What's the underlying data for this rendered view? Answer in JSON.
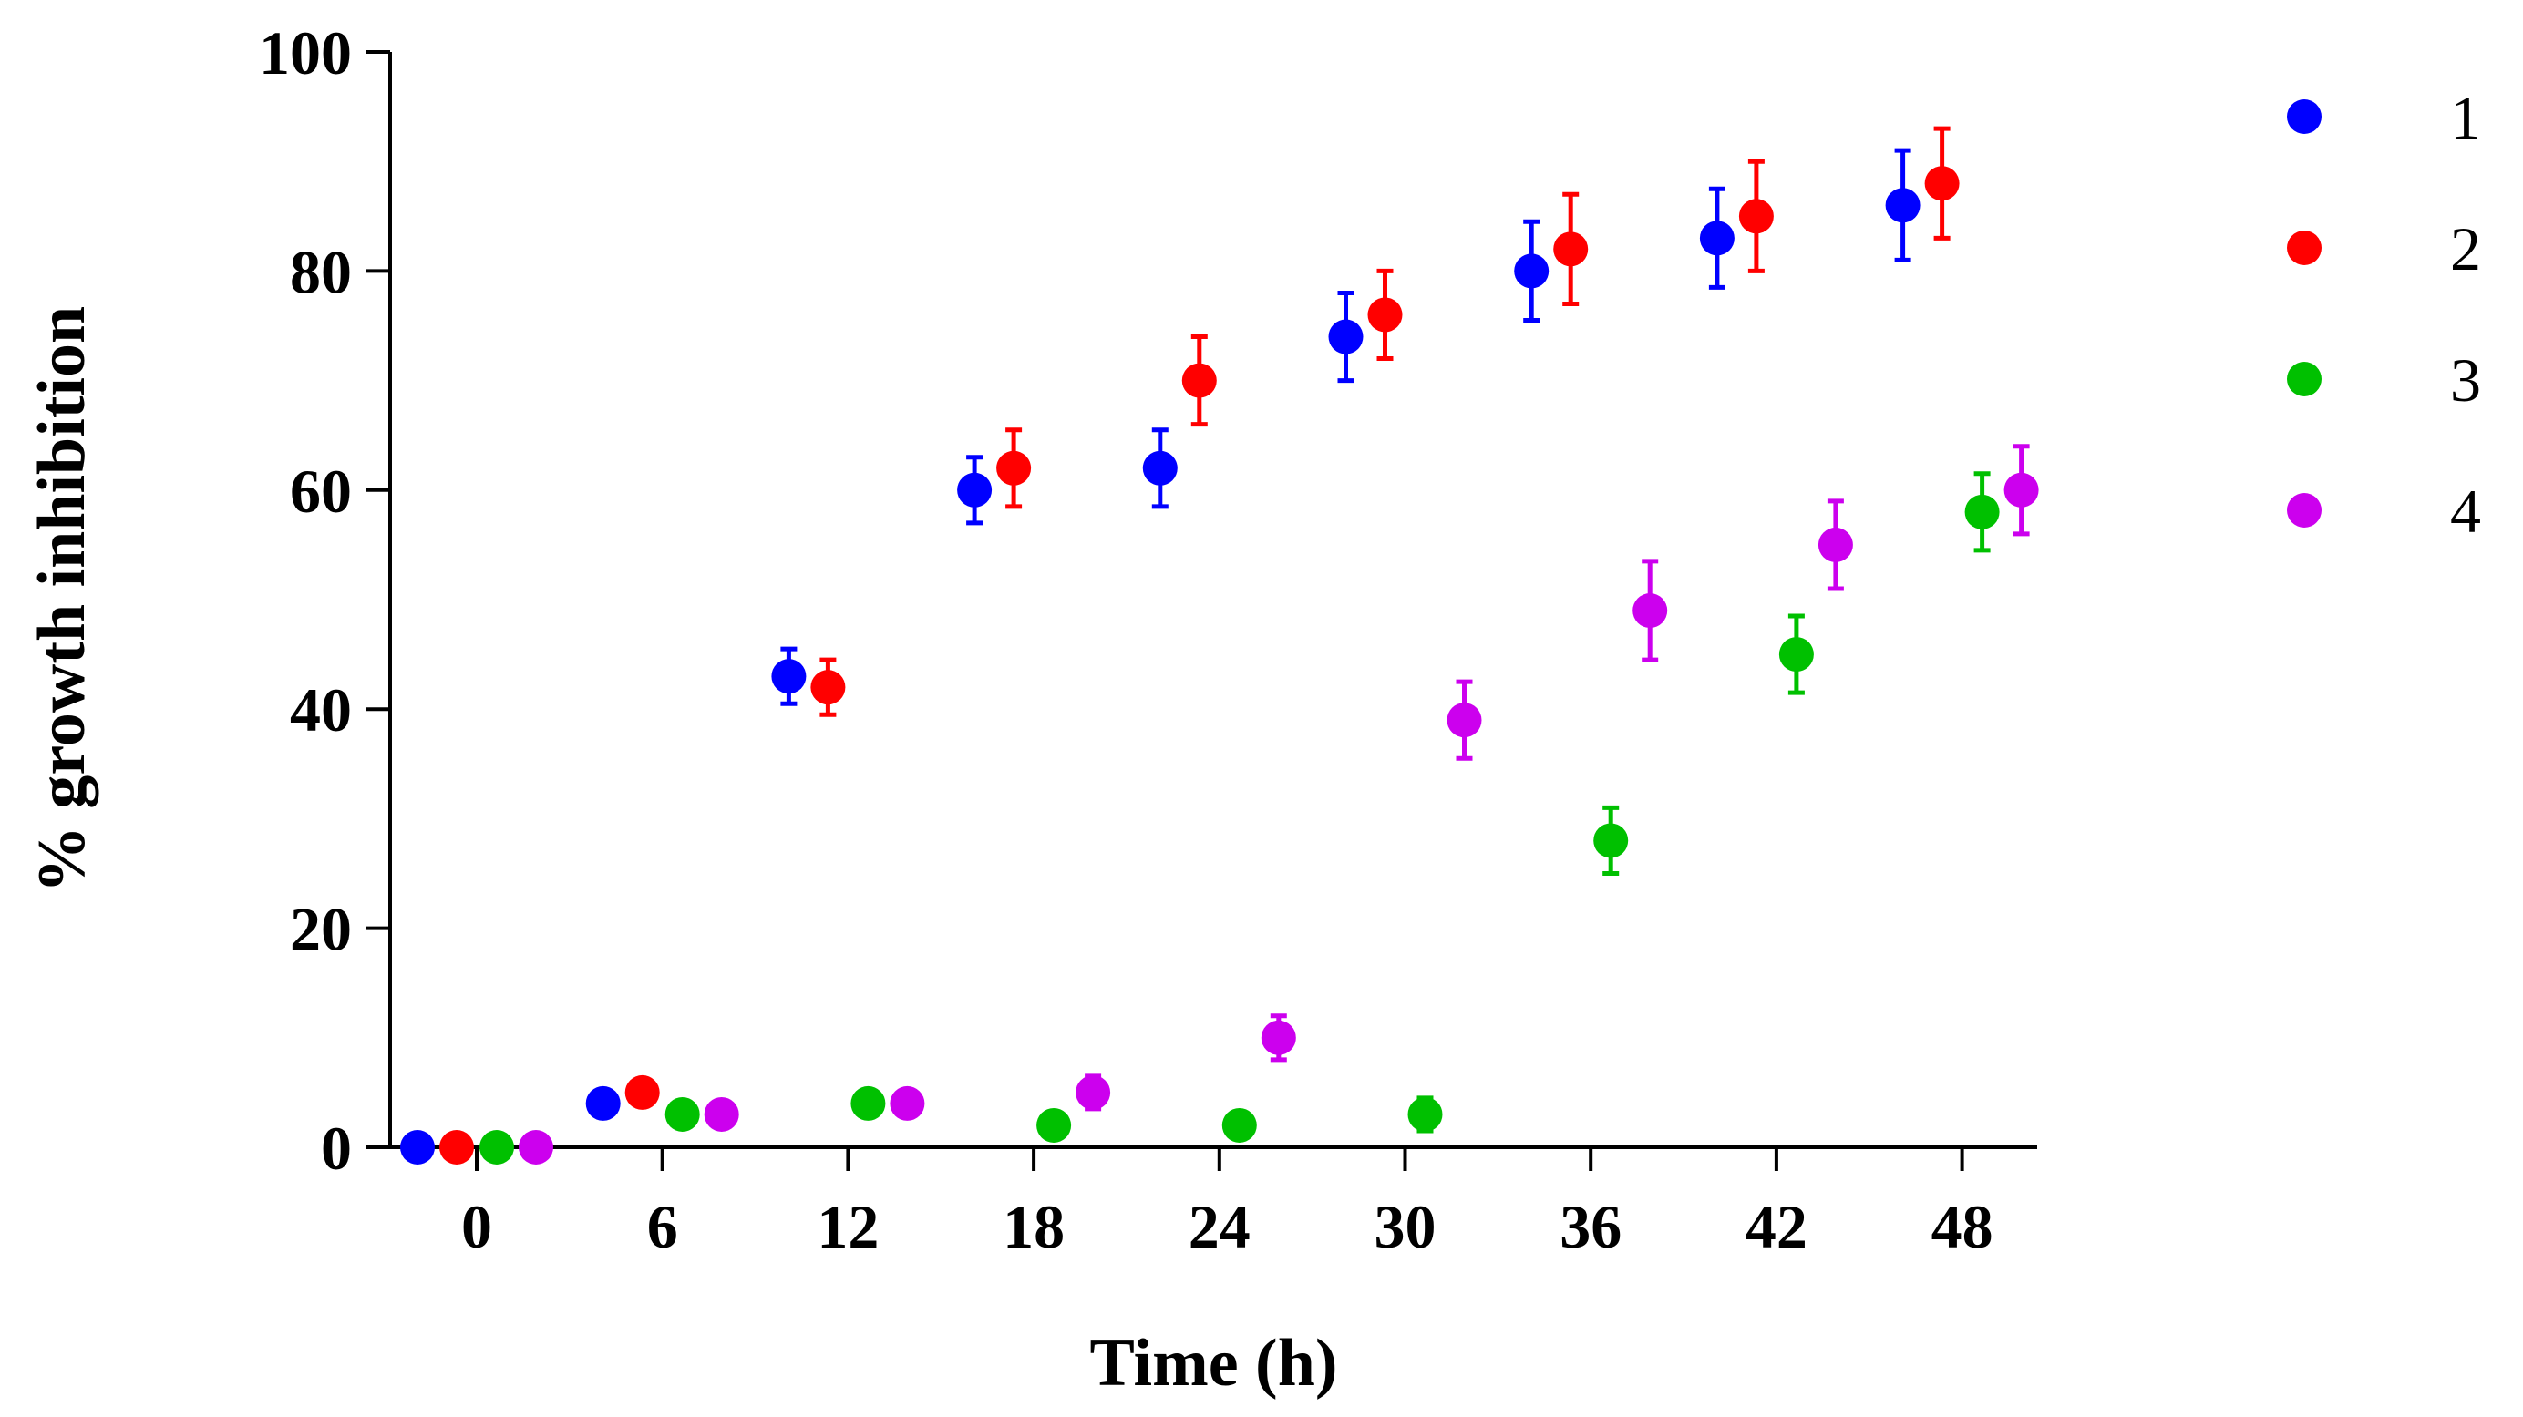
{
  "chart_data": {
    "type": "scatter",
    "title": "",
    "xlabel": "Time (h)",
    "ylabel": "% growth inhibition",
    "x": [
      0,
      6,
      12,
      18,
      24,
      30,
      36,
      42,
      48
    ],
    "x_tick_labels": [
      "0",
      "6",
      "12",
      "18",
      "24",
      "30",
      "36",
      "42",
      "48"
    ],
    "y_ticks": [
      0,
      20,
      40,
      60,
      80,
      100
    ],
    "y_tick_labels": [
      "0",
      "20",
      "40",
      "60",
      "80",
      "100"
    ],
    "ylim": [
      0,
      100
    ],
    "legend_position": "right",
    "series": [
      {
        "name": "1",
        "color": "#0000ff",
        "values": [
          0,
          4,
          43,
          60,
          62,
          74,
          80,
          83,
          86
        ],
        "errors": [
          0,
          0,
          2.5,
          3,
          3.5,
          4,
          4.5,
          4.5,
          5
        ]
      },
      {
        "name": "2",
        "color": "#ff0000",
        "values": [
          0,
          5,
          42,
          62,
          70,
          76,
          82,
          85,
          88
        ],
        "errors": [
          0,
          0,
          2.5,
          3.5,
          4,
          4,
          5,
          5,
          5
        ]
      },
      {
        "name": "3",
        "color": "#00c000",
        "values": [
          0,
          3,
          4,
          2,
          2,
          3,
          28,
          45,
          58
        ],
        "errors": [
          0,
          0,
          0,
          0,
          0,
          1.5,
          3,
          3.5,
          3.5
        ]
      },
      {
        "name": "4",
        "color": "#cc00ee",
        "values": [
          0,
          3,
          4,
          5,
          10,
          39,
          49,
          55,
          60
        ],
        "errors": [
          0,
          0,
          0,
          1.5,
          2,
          3.5,
          4.5,
          4,
          4
        ]
      }
    ]
  }
}
